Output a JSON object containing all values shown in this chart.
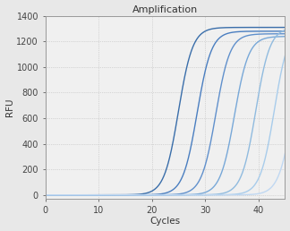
{
  "title": "Amplification",
  "xlabel": "Cycles",
  "ylabel": "RFU",
  "xlim": [
    0,
    45
  ],
  "ylim": [
    -30,
    1400
  ],
  "xticks": [
    0,
    10,
    20,
    30,
    40
  ],
  "yticks": [
    0,
    200,
    400,
    600,
    800,
    1000,
    1200,
    1400
  ],
  "curves": [
    {
      "midpoint": 25.0,
      "steepness": 0.75,
      "plateau": 1310,
      "color": "#3a6eaa",
      "lw": 1.0
    },
    {
      "midpoint": 28.5,
      "steepness": 0.75,
      "plateau": 1280,
      "color": "#4a7ec0",
      "lw": 1.0
    },
    {
      "midpoint": 32.0,
      "steepness": 0.75,
      "plateau": 1260,
      "color": "#6090cc",
      "lw": 1.0
    },
    {
      "midpoint": 35.5,
      "steepness": 0.75,
      "plateau": 1240,
      "color": "#78a8d8",
      "lw": 1.0
    },
    {
      "midpoint": 39.5,
      "steepness": 0.75,
      "plateau": 1310,
      "color": "#90bbdf",
      "lw": 1.0
    },
    {
      "midpoint": 43.0,
      "steepness": 0.75,
      "plateau": 1330,
      "color": "#a8cceb",
      "lw": 1.0
    },
    {
      "midpoint": 46.5,
      "steepness": 0.75,
      "plateau": 1320,
      "color": "#c0d8f2",
      "lw": 1.0
    }
  ],
  "background_color": "#e8e8e8",
  "plot_bg_color": "#f0f0f0",
  "grid_color": "#bbbbbb",
  "title_fontsize": 8,
  "label_fontsize": 7.5,
  "tick_fontsize": 7
}
